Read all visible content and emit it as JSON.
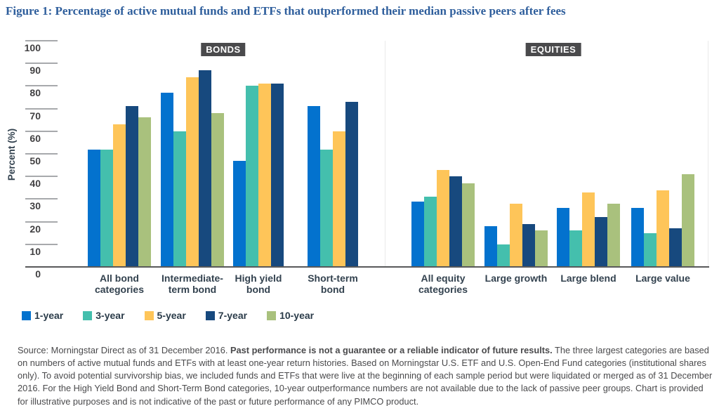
{
  "title": "Figure 1: Percentage of active mutual funds and ETFs that outperformed their median passive peers after fees",
  "colors": {
    "title_text": "#2E5E9C",
    "axis_line": "#58595B",
    "tick_line": "#A7A9AC",
    "badge_bg": "#4A4A4C",
    "badge_text": "#FFFFFF",
    "category_text": "#33424F",
    "tick_text": "#414042",
    "footnote_text": "#4A4A4C"
  },
  "legend": [
    {
      "label": "1-year",
      "color": "#0372CE"
    },
    {
      "label": "3-year",
      "color": "#44BFAD"
    },
    {
      "label": "5-year",
      "color": "#FEC559"
    },
    {
      "label": "7-year",
      "color": "#17497E"
    },
    {
      "label": "10-year",
      "color": "#A9C17D"
    }
  ],
  "chart_data": {
    "type": "bar",
    "title": "Percentage of active mutual funds and ETFs that outperformed their median passive peers after fees",
    "xlabel": "",
    "ylabel": "Percent (%)",
    "ylim": [
      0,
      100
    ],
    "yticks": [
      0,
      10,
      20,
      30,
      40,
      50,
      60,
      70,
      80,
      90,
      100
    ],
    "grid": false,
    "legend_position": "bottom-left",
    "series_names": [
      "1-year",
      "3-year",
      "5-year",
      "7-year",
      "10-year"
    ],
    "panels": [
      {
        "label": "BONDS",
        "groups": [
          {
            "category": "All bond categories",
            "label_lines": [
              "All bond",
              "categories"
            ],
            "values": [
              52,
              52,
              63,
              71,
              66
            ]
          },
          {
            "category": "Intermediate-term bond",
            "label_lines": [
              "Intermediate-",
              "term bond"
            ],
            "values": [
              77,
              60,
              84,
              87,
              68
            ]
          },
          {
            "category": "High yield bond",
            "label_lines": [
              "High yield",
              "bond"
            ],
            "values": [
              47,
              80,
              81,
              81,
              null
            ]
          },
          {
            "category": "Short-term bond",
            "label_lines": [
              "Short-term",
              "bond"
            ],
            "values": [
              71,
              52,
              60,
              73,
              null
            ]
          }
        ]
      },
      {
        "label": "EQUITIES",
        "groups": [
          {
            "category": "All equity categories",
            "label_lines": [
              "All equity",
              "categories"
            ],
            "values": [
              29,
              31,
              43,
              40,
              37
            ]
          },
          {
            "category": "Large growth",
            "label_lines": [
              "Large growth"
            ],
            "values": [
              18,
              10,
              28,
              19,
              16
            ]
          },
          {
            "category": "Large blend",
            "label_lines": [
              "Large blend"
            ],
            "values": [
              26,
              16,
              33,
              22,
              28
            ]
          },
          {
            "category": "Large value",
            "label_lines": [
              "Large value"
            ],
            "values": [
              26,
              15,
              34,
              17,
              41
            ]
          }
        ]
      }
    ]
  },
  "footnote": {
    "pre": "Source: Morningstar Direct as of 31 December 2016. ",
    "bold": "Past performance is not a guarantee or a reliable indicator of future results.",
    "post": " The three largest categories are based on numbers of active mutual funds and ETFs with at least one-year return histories. Based on Morningstar U.S. ETF and U.S. Open-End Fund categories (institutional shares only). To avoid potential survivorship bias, we included funds and ETFs that were live at the beginning of each sample period but were liquidated or merged as of 31 December 2016. For the High Yield Bond and Short-Term Bond categories, 10-year outperformance numbers are not available due to the lack of passive peer groups. Chart is provided for illustrative purposes and is not indicative of the past or future performance of any PIMCO product."
  }
}
